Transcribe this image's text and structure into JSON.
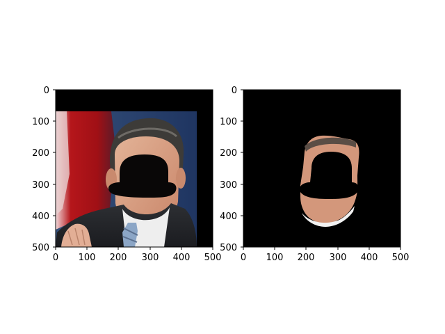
{
  "figure": {
    "background": "#ffffff",
    "panels": [
      {
        "id": "left",
        "content": "photo of a man in a suit with a black bowler-hat shaped occluder covering his face; red flag and blue backdrop behind",
        "x_ticks": [
          "0",
          "100",
          "200",
          "300",
          "400",
          "500"
        ],
        "y_ticks": [
          "0",
          "100",
          "200",
          "300",
          "400",
          "500"
        ],
        "xlim": [
          0,
          500
        ],
        "ylim": [
          500,
          0
        ]
      },
      {
        "id": "right",
        "content": "segmented face/hair region on black background with the same hat-shaped occluder",
        "x_ticks": [
          "0",
          "100",
          "200",
          "300",
          "400",
          "500"
        ],
        "y_ticks": [
          "0",
          "100",
          "200",
          "300",
          "400",
          "500"
        ],
        "xlim": [
          0,
          500
        ],
        "ylim": [
          500,
          0
        ]
      }
    ],
    "colors": {
      "black": "#000000",
      "flag_red": "#b5161b",
      "backdrop_blue": "#2f4a76",
      "skin": "#d79f82",
      "hair": "#3b3936",
      "suit": "#26282c",
      "shirt": "#ececec",
      "tie": "#8ea6c5"
    }
  }
}
